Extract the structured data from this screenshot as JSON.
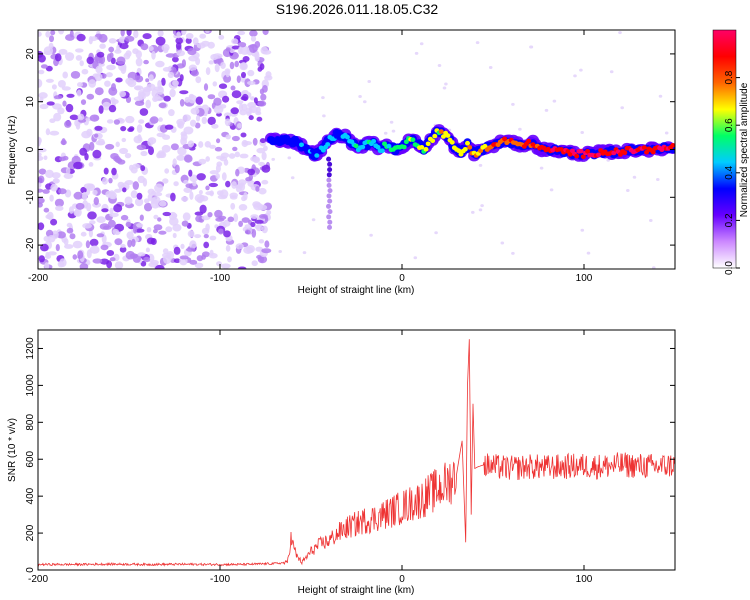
{
  "figure_title": "S196.2026.011.18.05.C32",
  "chart_data": [
    {
      "type": "heatmap",
      "title": "",
      "xlabel": "Height of straight line (km)",
      "ylabel": "Frequency (Hz)",
      "xlim": [
        -200,
        150
      ],
      "ylim": [
        -25,
        25
      ],
      "xticks": [
        -200,
        -100,
        0,
        100
      ],
      "xtick_labels": [
        "-200",
        "-100",
        "0",
        "100"
      ],
      "yticks": [
        -20,
        -10,
        0,
        10,
        20
      ],
      "ytick_labels": [
        "-20",
        "-10",
        "0",
        "10",
        "20"
      ],
      "noise_region_x": [
        -200,
        -73
      ],
      "ridge": {
        "x": [
          -72,
          -65,
          -58,
          -52,
          -48,
          -44,
          -40,
          -36,
          -32,
          -28,
          -24,
          -20,
          -16,
          -12,
          -8,
          -4,
          0,
          4,
          8,
          12,
          16,
          20,
          24,
          28,
          32,
          36,
          40,
          44,
          48,
          52,
          56,
          60,
          64,
          68,
          72,
          76,
          80,
          90,
          100,
          110,
          120,
          130,
          140,
          150
        ],
        "frequency": [
          2,
          2,
          1.5,
          0,
          -1,
          0,
          2,
          3,
          3,
          1.5,
          0.5,
          1,
          1.5,
          0,
          1,
          0,
          0.5,
          2,
          1.5,
          0,
          2,
          4,
          3,
          1,
          -1,
          1,
          -1,
          0,
          0.5,
          1,
          2,
          1.5,
          1,
          1,
          1.5,
          0,
          0,
          -0.5,
          -1,
          -0.5,
          -0.5,
          0,
          0,
          0.5
        ],
        "amplitude": [
          0.3,
          0.35,
          0.35,
          0.35,
          0.35,
          0.4,
          0.4,
          0.4,
          0.45,
          0.45,
          0.45,
          0.5,
          0.5,
          0.5,
          0.5,
          0.55,
          0.55,
          0.6,
          0.6,
          0.6,
          0.65,
          0.65,
          0.65,
          0.65,
          0.7,
          0.7,
          0.7,
          0.75,
          0.75,
          0.8,
          0.8,
          0.8,
          0.85,
          0.85,
          0.85,
          0.9,
          0.9,
          0.92,
          0.92,
          0.95,
          0.95,
          0.95,
          0.95,
          0.95
        ]
      },
      "colorbar": {
        "label": "Normalized spectral amplitude",
        "range": [
          0,
          1
        ],
        "ticks": [
          0,
          0.2,
          0.4,
          0.6,
          0.8
        ],
        "tick_labels": [
          "0.0",
          "0.2",
          "0.4",
          "0.6",
          "0.8"
        ],
        "colors": [
          "#ffffff",
          "#cc88ff",
          "#6600ff",
          "#0000ff",
          "#00ccff",
          "#00ff66",
          "#ffff00",
          "#ff6600",
          "#ff0000",
          "#ff0066"
        ]
      }
    },
    {
      "type": "line",
      "title": "",
      "xlabel": "Height of straight line (km)",
      "ylabel": "SNR (10 * v/v)",
      "xlim": [
        -200,
        150
      ],
      "ylim": [
        0,
        1300
      ],
      "xticks": [
        -200,
        -100,
        0,
        100
      ],
      "xtick_labels": [
        "-200",
        "-100",
        "0",
        "100"
      ],
      "yticks": [
        0,
        200,
        400,
        600,
        800,
        1000,
        1200
      ],
      "ytick_labels": [
        "0",
        "200",
        "400",
        "600",
        "800",
        "1000",
        "1200"
      ],
      "series": [
        {
          "name": "SNR",
          "color": "#ee3333",
          "x": [
            -200,
            -180,
            -160,
            -140,
            -120,
            -100,
            -90,
            -80,
            -70,
            -63,
            -61,
            -58,
            -55,
            -50,
            -45,
            -40,
            -35,
            -30,
            -25,
            -20,
            -15,
            -10,
            -5,
            0,
            5,
            10,
            15,
            20,
            25,
            30,
            33,
            35,
            36,
            37,
            38,
            39,
            40,
            42,
            45,
            50,
            60,
            70,
            80,
            90,
            100,
            110,
            120,
            130,
            140,
            150
          ],
          "y": [
            30,
            30,
            32,
            30,
            31,
            30,
            30,
            32,
            35,
            40,
            170,
            80,
            40,
            100,
            140,
            160,
            200,
            230,
            250,
            270,
            280,
            300,
            320,
            340,
            360,
            380,
            410,
            440,
            470,
            520,
            700,
            150,
            1000,
            1250,
            300,
            900,
            550,
            560,
            570,
            560,
            550,
            560,
            555,
            560,
            565,
            560,
            570,
            565,
            560,
            570
          ]
        }
      ]
    }
  ]
}
